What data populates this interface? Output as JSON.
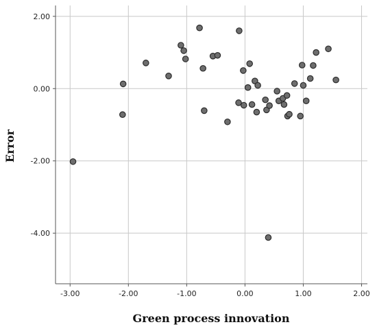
{
  "chart_data": {
    "type": "scatter",
    "title": "",
    "xlabel": "Green process innovation",
    "ylabel": "Error",
    "xlim": [
      -3.25,
      2.1
    ],
    "ylim": [
      -5.4,
      2.3
    ],
    "x_ticks": [
      -3,
      -2,
      -1,
      0,
      1,
      2
    ],
    "x_tick_labels": [
      "-3.00",
      "-2.00",
      "-1.00",
      "0.00",
      "1.00",
      "2.00"
    ],
    "y_ticks": [
      2,
      0,
      -2,
      -4
    ],
    "y_tick_labels": [
      "2.00",
      "0.00",
      "-2.00",
      "-4.00"
    ],
    "grid": true,
    "legend": "none",
    "colors": {
      "point_fill": "#6e6e6e",
      "point_stroke": "#2b2b2b",
      "grid": "#c8c8c8",
      "axis": "#555555"
    },
    "points": [
      {
        "x": -2.95,
        "y": -2.02
      },
      {
        "x": -2.09,
        "y": 0.13
      },
      {
        "x": -2.1,
        "y": -0.72
      },
      {
        "x": -1.7,
        "y": 0.71
      },
      {
        "x": -1.31,
        "y": 0.35
      },
      {
        "x": -1.1,
        "y": 1.2
      },
      {
        "x": -1.05,
        "y": 1.05
      },
      {
        "x": -1.02,
        "y": 0.82
      },
      {
        "x": -0.78,
        "y": 1.68
      },
      {
        "x": -0.72,
        "y": 0.56
      },
      {
        "x": -0.7,
        "y": -0.61
      },
      {
        "x": -0.55,
        "y": 0.9
      },
      {
        "x": -0.47,
        "y": 0.92
      },
      {
        "x": -0.3,
        "y": -0.92
      },
      {
        "x": -0.1,
        "y": 1.6
      },
      {
        "x": -0.11,
        "y": -0.39
      },
      {
        "x": -0.03,
        "y": 0.5
      },
      {
        "x": -0.02,
        "y": -0.46
      },
      {
        "x": 0.05,
        "y": 0.03
      },
      {
        "x": 0.08,
        "y": 0.69
      },
      {
        "x": 0.12,
        "y": -0.44
      },
      {
        "x": 0.17,
        "y": 0.21
      },
      {
        "x": 0.2,
        "y": -0.65
      },
      {
        "x": 0.22,
        "y": 0.09
      },
      {
        "x": 0.35,
        "y": -0.31
      },
      {
        "x": 0.37,
        "y": -0.59
      },
      {
        "x": 0.42,
        "y": -0.47
      },
      {
        "x": 0.4,
        "y": -4.12
      },
      {
        "x": 0.55,
        "y": -0.07
      },
      {
        "x": 0.58,
        "y": -0.34
      },
      {
        "x": 0.65,
        "y": -0.27
      },
      {
        "x": 0.67,
        "y": -0.44
      },
      {
        "x": 0.72,
        "y": -0.19
      },
      {
        "x": 0.73,
        "y": -0.76
      },
      {
        "x": 0.76,
        "y": -0.71
      },
      {
        "x": 0.85,
        "y": 0.14
      },
      {
        "x": 0.95,
        "y": -0.76
      },
      {
        "x": 0.98,
        "y": 0.65
      },
      {
        "x": 1.0,
        "y": 0.09
      },
      {
        "x": 1.05,
        "y": -0.34
      },
      {
        "x": 1.12,
        "y": 0.28
      },
      {
        "x": 1.17,
        "y": 0.64
      },
      {
        "x": 1.22,
        "y": 1.0
      },
      {
        "x": 1.43,
        "y": 1.1
      },
      {
        "x": 1.56,
        "y": 0.24
      }
    ]
  }
}
